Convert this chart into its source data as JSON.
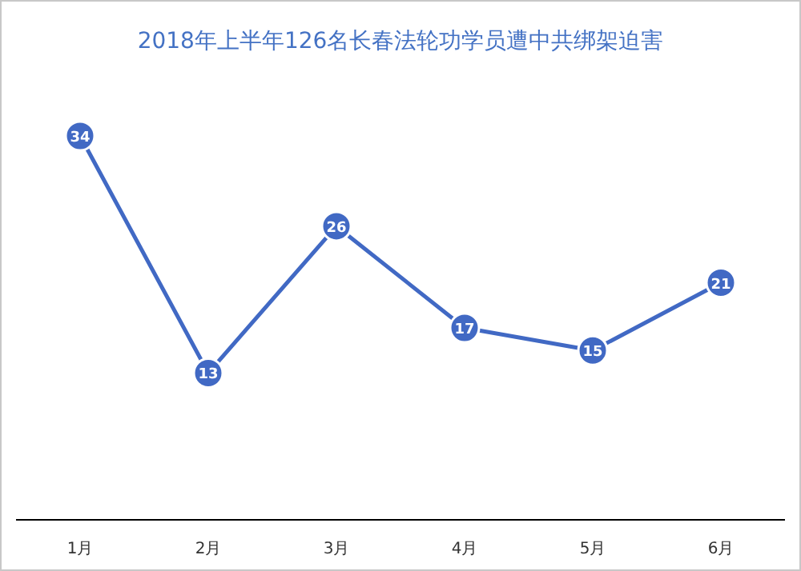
{
  "chart_data": {
    "type": "line",
    "title": "2018年上半年126名长春法轮功学员遭中共绑架迫害",
    "categories": [
      "1月",
      "2月",
      "3月",
      "4月",
      "5月",
      "6月"
    ],
    "series": [
      {
        "color": "#4169c4",
        "values": [
          34,
          13,
          26,
          17,
          15,
          21
        ]
      }
    ],
    "data_labels": true,
    "marker": "circle",
    "line_style": "solid"
  }
}
